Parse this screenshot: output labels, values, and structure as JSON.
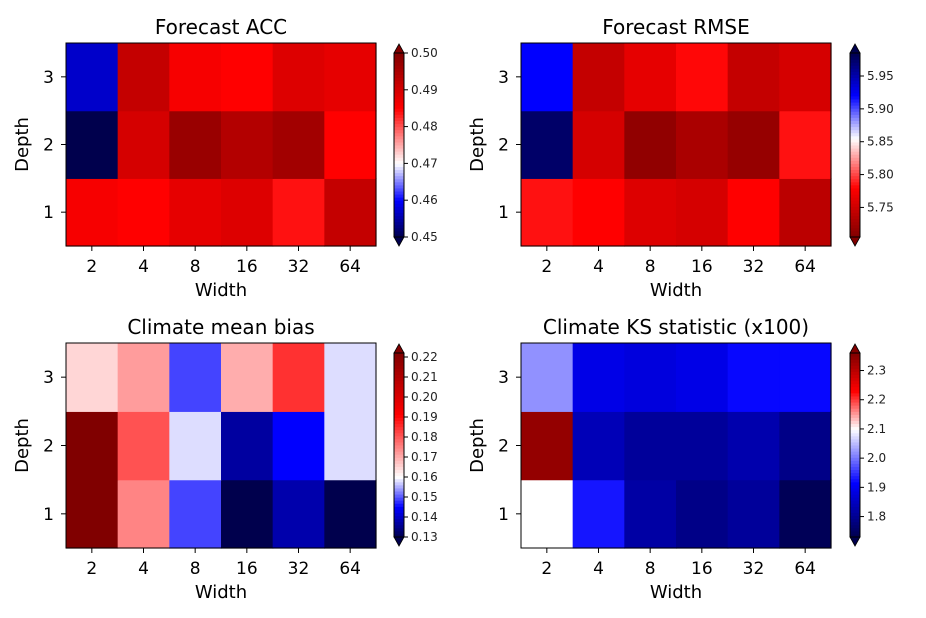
{
  "chart_data": [
    {
      "type": "heatmap",
      "title": "Forecast ACC",
      "xlabel": "Width",
      "ylabel": "Depth",
      "x_categories": [
        "2",
        "4",
        "8",
        "16",
        "32",
        "64"
      ],
      "y_categories": [
        "1",
        "2",
        "3"
      ],
      "values": [
        [
          0.486,
          0.485,
          0.488,
          0.489,
          0.484,
          0.492
        ],
        [
          0.45,
          0.49,
          0.497,
          0.494,
          0.496,
          0.485
        ],
        [
          0.457,
          0.492,
          0.486,
          0.485,
          0.489,
          0.488
        ]
      ],
      "vmin": 0.45,
      "vmax": 0.5,
      "vcenter": 0.47,
      "colormap": "seismic",
      "colorbar_ticks": [
        "0.45",
        "0.46",
        "0.47",
        "0.48",
        "0.49",
        "0.50"
      ],
      "colorbar_extend": "both"
    },
    {
      "type": "heatmap",
      "title": "Forecast RMSE",
      "xlabel": "Width",
      "ylabel": "Depth",
      "x_categories": [
        "2",
        "4",
        "8",
        "16",
        "32",
        "64"
      ],
      "y_categories": [
        "1",
        "2",
        "3"
      ],
      "values": [
        [
          5.785,
          5.78,
          5.76,
          5.755,
          5.78,
          5.74
        ],
        [
          5.975,
          5.755,
          5.715,
          5.73,
          5.718,
          5.785
        ],
        [
          5.92,
          5.745,
          5.765,
          5.782,
          5.745,
          5.755
        ]
      ],
      "vmin": 5.705,
      "vmax": 5.985,
      "vcenter": 5.855,
      "colormap": "seismic_r",
      "colorbar_ticks": [
        "5.75",
        "5.80",
        "5.85",
        "5.90",
        "5.95"
      ],
      "colorbar_extend": "both"
    },
    {
      "type": "heatmap",
      "title": "Climate mean bias",
      "xlabel": "Width",
      "ylabel": "Depth",
      "x_categories": [
        "2",
        "4",
        "8",
        "16",
        "32",
        "64"
      ],
      "y_categories": [
        "1",
        "2",
        "3"
      ],
      "values": [
        [
          0.222,
          0.175,
          0.149,
          0.13,
          0.138,
          0.13
        ],
        [
          0.222,
          0.181,
          0.158,
          0.137,
          0.145,
          0.158
        ],
        [
          0.165,
          0.172,
          0.149,
          0.17,
          0.185,
          0.158
        ]
      ],
      "vmin": 0.13,
      "vmax": 0.222,
      "vcenter": 0.16,
      "colormap": "seismic",
      "colorbar_ticks": [
        "0.13",
        "0.14",
        "0.15",
        "0.16",
        "0.17",
        "0.18",
        "0.19",
        "0.20",
        "0.21",
        "0.22"
      ],
      "colorbar_extend": "both"
    },
    {
      "type": "heatmap",
      "title": "Climate KS statistic (x100)",
      "xlabel": "Width",
      "ylabel": "Depth",
      "x_categories": [
        "2",
        "4",
        "8",
        "16",
        "32",
        "64"
      ],
      "y_categories": [
        "1",
        "2",
        "3"
      ],
      "values": [
        [
          2.1,
          1.93,
          1.82,
          1.79,
          1.81,
          1.74
        ],
        [
          2.34,
          1.84,
          1.81,
          1.81,
          1.83,
          1.79
        ],
        [
          2.02,
          1.89,
          1.88,
          1.89,
          1.92,
          1.92
        ]
      ],
      "vmin": 1.73,
      "vmax": 2.36,
      "vcenter": 2.1,
      "colormap": "seismic",
      "colorbar_ticks": [
        "1.8",
        "1.9",
        "2.0",
        "2.1",
        "2.2",
        "2.3"
      ],
      "colorbar_extend": "both"
    }
  ]
}
